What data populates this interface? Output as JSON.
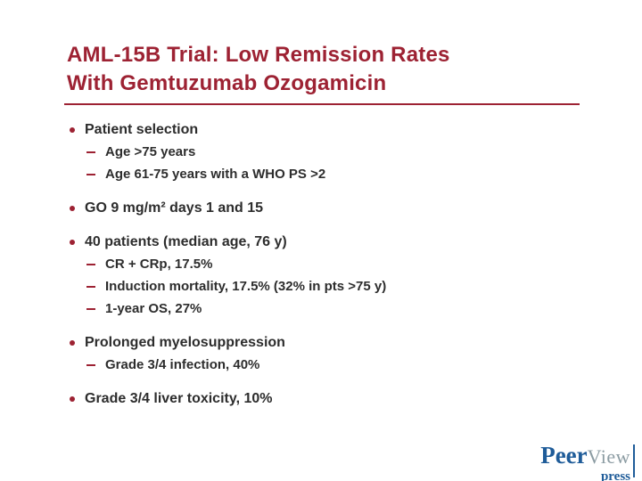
{
  "slide": {
    "title_line1": "AML-15B Trial: Low Remission Rates",
    "title_line2": "With Gemtuzumab Ozogamicin",
    "bullets": [
      {
        "text": "Patient selection",
        "subs": [
          "Age >75 years",
          "Age 61-75 years with a WHO PS >2"
        ]
      },
      {
        "text": "GO 9 mg/m² days 1 and 15",
        "subs": []
      },
      {
        "text": "40 patients (median age, 76 y)",
        "subs": [
          "CR + CRp, 17.5%",
          "Induction mortality, 17.5% (32% in pts >75 y)",
          "1-year OS, 27%"
        ]
      },
      {
        "text": "Prolonged myelosuppression",
        "subs": [
          "Grade 3/4 infection, 40%"
        ]
      },
      {
        "text": "Grade 3/4 liver toxicity, 10%",
        "subs": []
      }
    ],
    "colors": {
      "accent_red": "#9d2233",
      "body_text": "#2d2d2d",
      "logo_blue": "#1f5c99",
      "logo_gray": "#8c9ca3"
    },
    "logo": {
      "part1": "Peer",
      "part2": "View",
      "part3": "press"
    }
  }
}
